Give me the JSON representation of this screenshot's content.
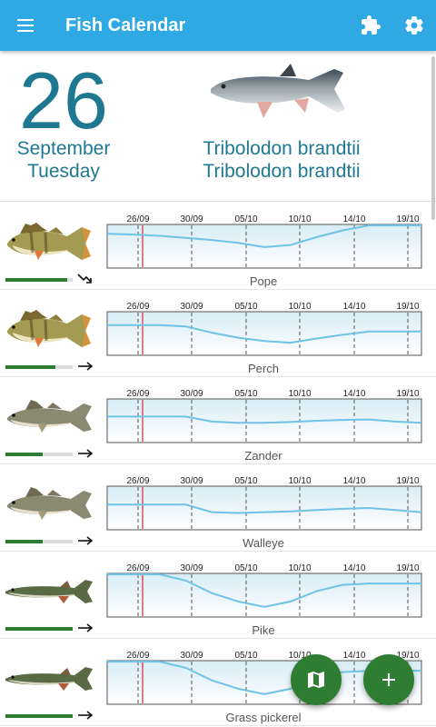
{
  "app": {
    "title": "Fish Calendar"
  },
  "colors": {
    "appbar": "#2fa9e3",
    "accent_text": "#1f7891",
    "fab": "#2e7d32",
    "curve": "#6fc3e6",
    "today_line": "#d9534f"
  },
  "header": {
    "day": "26",
    "month": "September",
    "weekday": "Tuesday",
    "species_line1": "Tribolodon brandtii",
    "species_line2": "Tribolodon brandtii"
  },
  "date_ticks": [
    "26/09",
    "30/09",
    "05/10",
    "10/10",
    "14/10",
    "19/10"
  ],
  "fish": [
    {
      "name": "Pope",
      "activity": 0.92,
      "trend": "down",
      "curve": [
        0.2,
        0.22,
        0.25,
        0.3,
        0.35,
        0.42,
        0.52,
        0.47,
        0.28,
        0.12,
        0.0,
        0.0,
        0.0
      ],
      "kind": "perch"
    },
    {
      "name": "Perch",
      "activity": 0.74,
      "trend": "flat",
      "curve": [
        0.3,
        0.3,
        0.3,
        0.33,
        0.48,
        0.6,
        0.68,
        0.72,
        0.62,
        0.53,
        0.45,
        0.45,
        0.45
      ],
      "kind": "perch"
    },
    {
      "name": "Zander",
      "activity": 0.55,
      "trend": "flat",
      "curve": [
        0.4,
        0.4,
        0.4,
        0.4,
        0.52,
        0.55,
        0.55,
        0.53,
        0.5,
        0.48,
        0.47,
        0.52,
        0.55
      ],
      "kind": "zander"
    },
    {
      "name": "Walleye",
      "activity": 0.55,
      "trend": "flat",
      "curve": [
        0.42,
        0.42,
        0.42,
        0.42,
        0.6,
        0.62,
        0.6,
        0.58,
        0.55,
        0.52,
        0.5,
        0.55,
        0.6
      ],
      "kind": "zander"
    },
    {
      "name": "Pike",
      "activity": 1.0,
      "trend": "flat",
      "curve": [
        0.0,
        0.0,
        0.0,
        0.15,
        0.45,
        0.65,
        0.78,
        0.65,
        0.4,
        0.25,
        0.22,
        0.22,
        0.22
      ],
      "kind": "pike"
    },
    {
      "name": "Grass pickerel",
      "activity": 1.0,
      "trend": "flat",
      "curve": [
        0.0,
        0.0,
        0.0,
        0.15,
        0.45,
        0.65,
        0.78,
        0.65,
        0.4,
        0.25,
        0.22,
        0.22,
        0.22
      ],
      "kind": "pike"
    }
  ],
  "icons": {
    "menu": "menu-icon",
    "plugins": "puzzle-icon",
    "settings": "gear-icon",
    "map": "map-icon",
    "add": "plus-icon"
  }
}
